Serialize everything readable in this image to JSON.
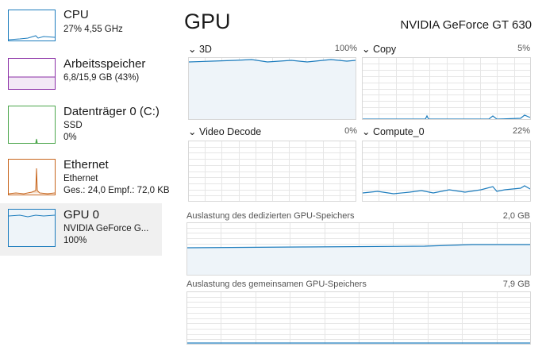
{
  "sidebar": [
    {
      "title": "CPU",
      "lines": [
        "27% 4,55 GHz"
      ]
    },
    {
      "title": "Arbeitsspeicher",
      "lines": [
        "6,8/15,9 GB (43%)"
      ]
    },
    {
      "title": "Datenträger 0 (C:)",
      "lines": [
        "SSD",
        "0%"
      ]
    },
    {
      "title": "Ethernet",
      "lines": [
        "Ethernet",
        "Ges.: 24,0 Empf.: 72,0 KB"
      ]
    },
    {
      "title": "GPU 0",
      "lines": [
        "NVIDIA GeForce G...",
        "100%"
      ]
    }
  ],
  "header": {
    "title": "GPU",
    "device": "NVIDIA GeForce GT 630"
  },
  "graphs": [
    {
      "label": "3D",
      "value": "100%"
    },
    {
      "label": "Copy",
      "value": "5%"
    },
    {
      "label": "Video Decode",
      "value": "0%"
    },
    {
      "label": "Compute_0",
      "value": "22%"
    }
  ],
  "memory": [
    {
      "label": "Auslastung des dedizierten GPU-Speichers",
      "value": "2,0 GB"
    },
    {
      "label": "Auslastung des gemeinsamen GPU-Speichers",
      "value": "7,9 GB"
    }
  ]
}
